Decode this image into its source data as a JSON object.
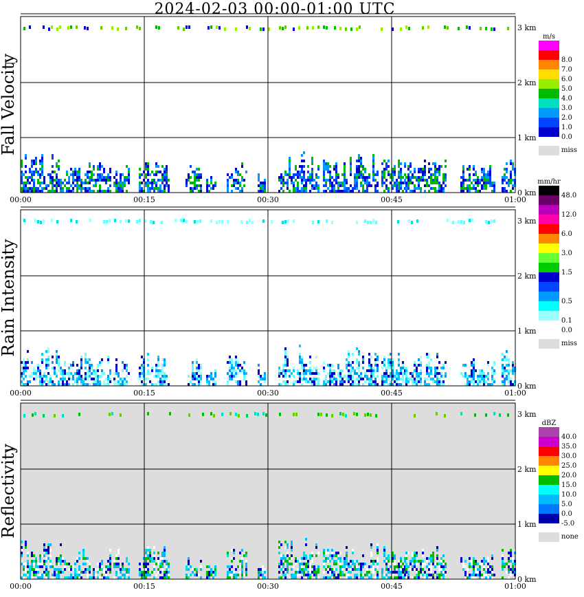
{
  "title": "2024-02-03   00:00-01:00 UTC",
  "x_ticks": [
    "00:00",
    "00:15",
    "00:30",
    "00:45",
    "01:00"
  ],
  "height_ticks": [
    "0 km",
    "1 km",
    "2 km",
    "3 km"
  ],
  "panels": [
    {
      "label": "Fall Velocity",
      "unit": "m/s",
      "background": "#ffffff",
      "missing_label": "miss",
      "missing_color": "#dddddd",
      "colorbar": [
        {
          "label": "0.0",
          "color": "#0000cc"
        },
        {
          "label": "1.0",
          "color": "#0044ff"
        },
        {
          "label": "2.0",
          "color": "#0099ff"
        },
        {
          "label": "3.0",
          "color": "#00e0c0"
        },
        {
          "label": "4.0",
          "color": "#00bb00"
        },
        {
          "label": "5.0",
          "color": "#99ee00"
        },
        {
          "label": "6.0",
          "color": "#ffdd00"
        },
        {
          "label": "7.0",
          "color": "#ff8800"
        },
        {
          "label": "8.0",
          "color": "#ff0000"
        },
        {
          "label": "",
          "color": "#ff00ff"
        }
      ],
      "near_surface_colors": [
        "#0000cc",
        "#0044ff",
        "#0099ff",
        "#00bb00"
      ],
      "top_band_colors": [
        "#66cc00",
        "#99ee00",
        "#00bb00",
        "#0000cc"
      ]
    },
    {
      "label": "Rain Intensity",
      "unit": "mm/hr",
      "background": "#ffffff",
      "missing_label": "miss",
      "missing_color": "#dddddd",
      "colorbar": [
        {
          "label": "0.0",
          "color": "#ffffff"
        },
        {
          "label": "0.1",
          "color": "#99ffff"
        },
        {
          "label": "",
          "color": "#00ffff"
        },
        {
          "label": "0.5",
          "color": "#0099ff"
        },
        {
          "label": "",
          "color": "#0044ff"
        },
        {
          "label": "",
          "color": "#0000cc"
        },
        {
          "label": "1.5",
          "color": "#00cc00"
        },
        {
          "label": "",
          "color": "#66ff33"
        },
        {
          "label": "3.0",
          "color": "#ffff00"
        },
        {
          "label": "",
          "color": "#ff8800"
        },
        {
          "label": "6.0",
          "color": "#ff0000"
        },
        {
          "label": "",
          "color": "#ff00aa"
        },
        {
          "label": "12.0",
          "color": "#bb00bb"
        },
        {
          "label": "",
          "color": "#660066"
        },
        {
          "label": "48.0",
          "color": "#000000"
        }
      ],
      "near_surface_colors": [
        "#99ffff",
        "#66ffff",
        "#00ccff",
        "#0099ff",
        "#0000cc"
      ],
      "top_band_colors": [
        "#66ffff",
        "#99ffff",
        "#00e0e0"
      ]
    },
    {
      "label": "Reflectivity",
      "unit": "dBZ",
      "background": "#dddddd",
      "missing_label": "none",
      "missing_color": "#dddddd",
      "colorbar": [
        {
          "label": "-5.0",
          "color": "#0000aa"
        },
        {
          "label": "0.0",
          "color": "#0077ff"
        },
        {
          "label": "5.0",
          "color": "#00bbff"
        },
        {
          "label": "10.0",
          "color": "#00ffff"
        },
        {
          "label": "15.0",
          "color": "#00bb00"
        },
        {
          "label": "20.0",
          "color": "#ffff00"
        },
        {
          "label": "25.0",
          "color": "#ff8800"
        },
        {
          "label": "30.0",
          "color": "#ff0000"
        },
        {
          "label": "35.0",
          "color": "#cc00cc"
        },
        {
          "label": "40.0",
          "color": "#aa44aa"
        }
      ],
      "near_surface_colors": [
        "#0000cc",
        "#00bbff",
        "#00e0e0",
        "#ffffff",
        "#00bb00"
      ],
      "top_band_colors": [
        "#00cc66",
        "#00bb00",
        "#66cc00",
        "#00e0c0"
      ]
    }
  ]
}
